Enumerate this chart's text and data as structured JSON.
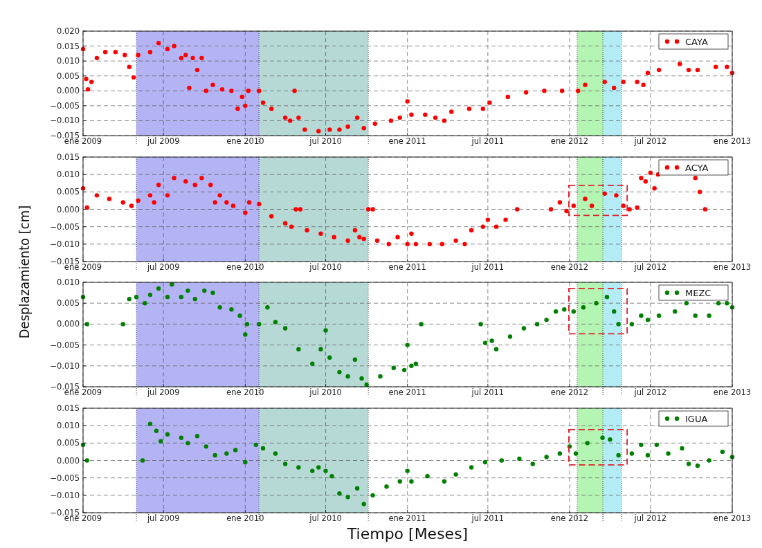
{
  "chart_data": [
    {
      "type": "scatter",
      "ylabel": "Desplazamiento [cm]",
      "marker": "circle",
      "grid": true,
      "legend": "top right",
      "xlim": [
        "2009-01-01",
        "2013-01-01"
      ],
      "xticks": [
        {
          "value": "2009-01-01",
          "label": "ene 2009"
        },
        {
          "value": "2009-07-01",
          "label": "jul 2009"
        },
        {
          "value": "2010-01-01",
          "label": "ene 2010"
        },
        {
          "value": "2010-07-01",
          "label": "jul 2010"
        },
        {
          "value": "2011-01-01",
          "label": "ene 2011"
        },
        {
          "value": "2011-07-01",
          "label": "jul 2011"
        },
        {
          "value": "2012-01-01",
          "label": "ene 2012"
        },
        {
          "value": "2012-07-01",
          "label": "jul 2012"
        },
        {
          "value": "2013-01-01",
          "label": "ene 2013"
        }
      ],
      "ylim": [
        -0.015,
        0.02
      ],
      "yticks": [
        {
          "value": -0.015,
          "label": "−0.015"
        },
        {
          "value": -0.01,
          "label": "−0.010"
        },
        {
          "value": -0.005,
          "label": "−0.005"
        },
        {
          "value": 0,
          "label": "0.000"
        },
        {
          "value": 0.005,
          "label": "0.005"
        },
        {
          "value": 0.01,
          "label": "0.010"
        },
        {
          "value": 0.015,
          "label": "0.015"
        },
        {
          "value": 0.02,
          "label": "0.020"
        }
      ],
      "bands": [
        {
          "axis": "x",
          "from": "2009-05-01",
          "to": "2010-02-01",
          "color": "#b4b4f4"
        },
        {
          "axis": "x",
          "from": "2010-02-01",
          "to": "2010-10-05",
          "color": "#b6d9d6"
        },
        {
          "axis": "x",
          "from": "2012-01-18",
          "to": "2012-03-16",
          "color": "#b4f5b4"
        },
        {
          "axis": "x",
          "from": "2012-03-16",
          "to": "2012-04-27",
          "color": "#b4ecf5"
        }
      ],
      "series": [
        {
          "name": "CAYA",
          "color": "#ff0000",
          "x": [
            "2009-01-01",
            "2009-01-08",
            "2009-01-12",
            "2009-01-20",
            "2009-02-01",
            "2009-02-20",
            "2009-03-15",
            "2009-04-05",
            "2009-04-15",
            "2009-04-25",
            "2009-05-05",
            "2009-06-01",
            "2009-06-20",
            "2009-07-10",
            "2009-07-25",
            "2009-08-10",
            "2009-08-20",
            "2009-08-28",
            "2009-09-05",
            "2009-09-15",
            "2009-09-25",
            "2009-10-05",
            "2009-10-20",
            "2009-11-10",
            "2009-12-01",
            "2009-12-15",
            "2009-12-25",
            "2010-01-01",
            "2010-01-08",
            "2010-02-01",
            "2010-02-10",
            "2010-03-01",
            "2010-04-01",
            "2010-04-12",
            "2010-04-22",
            "2010-05-01",
            "2010-05-15",
            "2010-06-15",
            "2010-07-10",
            "2010-08-01",
            "2010-08-20",
            "2010-09-10",
            "2010-09-25",
            "2010-10-20",
            "2010-11-25",
            "2010-12-15",
            "2011-01-01",
            "2011-01-10",
            "2011-02-10",
            "2011-03-05",
            "2011-03-25",
            "2011-04-10",
            "2011-05-20",
            "2011-06-20",
            "2011-07-05",
            "2011-08-15",
            "2011-09-25",
            "2011-11-05",
            "2011-12-15",
            "2012-01-20",
            "2012-02-05",
            "2012-03-20",
            "2012-04-10",
            "2012-05-01",
            "2012-06-01",
            "2012-06-15",
            "2012-06-25",
            "2012-07-20",
            "2012-09-05",
            "2012-09-25",
            "2012-10-15",
            "2012-11-25",
            "2012-12-20",
            "2013-01-01"
          ],
          "values": [
            0.014,
            0.004,
            0.0005,
            0.003,
            0.011,
            0.013,
            0.013,
            0.012,
            0.008,
            0.0045,
            0.012,
            0.013,
            0.016,
            0.014,
            0.015,
            0.011,
            0.012,
            0.001,
            0.011,
            0.007,
            0.011,
            0,
            0.002,
            0.0005,
            0,
            -0.006,
            -0.002,
            -0.005,
            0,
            0,
            -0.004,
            -0.006,
            -0.009,
            -0.01,
            0,
            -0.009,
            -0.013,
            -0.0135,
            -0.013,
            -0.013,
            -0.012,
            -0.009,
            -0.0125,
            -0.011,
            -0.01,
            -0.009,
            -0.0035,
            -0.008,
            -0.008,
            -0.009,
            -0.01,
            -0.007,
            -0.006,
            -0.006,
            -0.004,
            -0.002,
            -0.0005,
            0,
            0,
            0,
            0.002,
            0.003,
            0.001,
            0.003,
            0.003,
            0.002,
            0.006,
            0.007,
            0.009,
            0.007,
            0.007,
            0.008,
            0.008,
            0.006
          ]
        }
      ]
    },
    {
      "type": "scatter",
      "marker": "circle",
      "grid": true,
      "legend": "top right",
      "xlim": [
        "2009-01-01",
        "2013-01-01"
      ],
      "xticks": [
        {
          "value": "2009-01-01",
          "label": "ene 2009"
        },
        {
          "value": "2009-07-01",
          "label": "jul 2009"
        },
        {
          "value": "2010-01-01",
          "label": "ene 2010"
        },
        {
          "value": "2010-07-01",
          "label": "jul 2010"
        },
        {
          "value": "2011-01-01",
          "label": "ene 2011"
        },
        {
          "value": "2011-07-01",
          "label": "jul 2011"
        },
        {
          "value": "2012-01-01",
          "label": "ene 2012"
        },
        {
          "value": "2012-07-01",
          "label": "jul 2012"
        },
        {
          "value": "2013-01-01",
          "label": "ene 2013"
        }
      ],
      "ylim": [
        -0.015,
        0.015
      ],
      "yticks": [
        {
          "value": -0.015,
          "label": "−0.015"
        },
        {
          "value": -0.01,
          "label": "−0.010"
        },
        {
          "value": -0.005,
          "label": "−0.005"
        },
        {
          "value": 0,
          "label": "0.000"
        },
        {
          "value": 0.005,
          "label": "0.005"
        },
        {
          "value": 0.01,
          "label": "0.010"
        },
        {
          "value": 0.015,
          "label": "0.015"
        }
      ],
      "bands": [
        {
          "axis": "x",
          "from": "2009-05-01",
          "to": "2010-02-01",
          "color": "#b4b4f4"
        },
        {
          "axis": "x",
          "from": "2010-02-01",
          "to": "2010-10-05",
          "color": "#b6d9d6"
        },
        {
          "axis": "x",
          "from": "2012-01-18",
          "to": "2012-03-16",
          "color": "#b4f5b4"
        },
        {
          "axis": "x",
          "from": "2012-03-16",
          "to": "2012-04-27",
          "color": "#b4ecf5"
        }
      ],
      "series": [
        {
          "name": "ACYA",
          "color": "#ff0000",
          "x": [
            "2009-01-01",
            "2009-01-10",
            "2009-02-01",
            "2009-03-01",
            "2009-04-01",
            "2009-04-20",
            "2009-05-05",
            "2009-06-01",
            "2009-06-10",
            "2009-06-20",
            "2009-07-10",
            "2009-07-25",
            "2009-08-20",
            "2009-09-10",
            "2009-09-25",
            "2009-10-15",
            "2009-10-25",
            "2009-11-05",
            "2009-11-20",
            "2009-12-05",
            "2010-01-01",
            "2010-01-10",
            "2010-02-01",
            "2010-03-01",
            "2010-04-01",
            "2010-04-15",
            "2010-04-25",
            "2010-05-05",
            "2010-05-20",
            "2010-06-20",
            "2010-07-20",
            "2010-08-20",
            "2010-09-05",
            "2010-09-15",
            "2010-09-25",
            "2010-10-05",
            "2010-10-15",
            "2010-10-25",
            "2010-11-20",
            "2010-12-10",
            "2011-01-01",
            "2011-01-10",
            "2011-01-20",
            "2011-02-20",
            "2011-03-20",
            "2011-04-20",
            "2011-05-10",
            "2011-05-25",
            "2011-06-20",
            "2011-07-01",
            "2011-07-20",
            "2011-08-10",
            "2011-09-05",
            "2011-11-20",
            "2011-12-10",
            "2011-12-25",
            "2012-01-10",
            "2012-02-05",
            "2012-02-20",
            "2012-03-20",
            "2012-04-15",
            "2012-05-01",
            "2012-05-15",
            "2012-06-01",
            "2012-06-10",
            "2012-06-20",
            "2012-07-01",
            "2012-07-10",
            "2012-07-18",
            "2012-10-10",
            "2012-10-20",
            "2012-11-01"
          ],
          "values": [
            0.006,
            0.0005,
            0.004,
            0.003,
            0.002,
            0.001,
            0.0025,
            0.004,
            0.002,
            0.007,
            0.004,
            0.009,
            0.008,
            0.007,
            0.009,
            0.007,
            0.002,
            0.004,
            0.002,
            0.001,
            -0.001,
            0.002,
            0.0015,
            -0.002,
            -0.004,
            -0.005,
            0,
            0,
            -0.006,
            -0.007,
            -0.008,
            -0.009,
            -0.006,
            -0.008,
            -0.0085,
            0,
            0,
            -0.009,
            -0.01,
            -0.008,
            -0.01,
            -0.007,
            -0.01,
            -0.01,
            -0.01,
            -0.009,
            -0.01,
            -0.006,
            -0.005,
            -0.003,
            -0.005,
            -0.003,
            0,
            0,
            0.002,
            -0.0005,
            0.001,
            0.003,
            0.001,
            0.0045,
            0.004,
            0.001,
            0,
            0.0005,
            0.009,
            0.008,
            0.0105,
            0.006,
            0.01,
            0.009,
            0.005,
            0
          ]
        }
      ]
    },
    {
      "type": "scatter",
      "marker": "circle",
      "grid": true,
      "legend": "top right",
      "xlim": [
        "2009-01-01",
        "2013-01-01"
      ],
      "xticks": [
        {
          "value": "2009-01-01",
          "label": "ene 2009"
        },
        {
          "value": "2009-07-01",
          "label": "jul 2009"
        },
        {
          "value": "2010-01-01",
          "label": "ene 2010"
        },
        {
          "value": "2010-07-01",
          "label": "jul 2010"
        },
        {
          "value": "2011-01-01",
          "label": "ene 2011"
        },
        {
          "value": "2011-07-01",
          "label": "jul 2011"
        },
        {
          "value": "2012-01-01",
          "label": "ene 2012"
        },
        {
          "value": "2012-07-01",
          "label": "jul 2012"
        },
        {
          "value": "2013-01-01",
          "label": "ene 2013"
        }
      ],
      "ylim": [
        -0.015,
        0.01
      ],
      "yticks": [
        {
          "value": -0.015,
          "label": "−0.015"
        },
        {
          "value": -0.01,
          "label": "−0.010"
        },
        {
          "value": -0.005,
          "label": "−0.005"
        },
        {
          "value": 0,
          "label": "0.000"
        },
        {
          "value": 0.005,
          "label": "0.005"
        },
        {
          "value": 0.01,
          "label": "0.010"
        }
      ],
      "bands": [
        {
          "axis": "x",
          "from": "2009-05-01",
          "to": "2010-02-01",
          "color": "#b4b4f4"
        },
        {
          "axis": "x",
          "from": "2010-02-01",
          "to": "2010-10-05",
          "color": "#b6d9d6"
        },
        {
          "axis": "x",
          "from": "2012-01-18",
          "to": "2012-03-16",
          "color": "#b4f5b4"
        },
        {
          "axis": "x",
          "from": "2012-03-16",
          "to": "2012-04-27",
          "color": "#b4ecf5"
        }
      ],
      "series": [
        {
          "name": "MEZC",
          "color": "#008000",
          "x": [
            "2009-01-01",
            "2009-01-10",
            "2009-04-01",
            "2009-04-15",
            "2009-05-01",
            "2009-05-20",
            "2009-06-01",
            "2009-06-20",
            "2009-07-10",
            "2009-07-20",
            "2009-08-10",
            "2009-08-25",
            "2009-09-10",
            "2009-10-01",
            "2009-10-20",
            "2009-11-05",
            "2009-12-01",
            "2009-12-20",
            "2010-01-01",
            "2010-01-05",
            "2010-02-01",
            "2010-02-20",
            "2010-03-10",
            "2010-04-01",
            "2010-05-01",
            "2010-06-01",
            "2010-06-20",
            "2010-07-01",
            "2010-07-10",
            "2010-08-01",
            "2010-08-20",
            "2010-09-05",
            "2010-09-20",
            "2010-10-01",
            "2010-11-01",
            "2010-12-01",
            "2010-12-25",
            "2011-01-01",
            "2011-01-10",
            "2011-01-20",
            "2011-02-01",
            "2011-06-15",
            "2011-06-25",
            "2011-07-10",
            "2011-07-20",
            "2011-08-20",
            "2011-09-20",
            "2011-10-20",
            "2011-11-10",
            "2011-12-01",
            "2011-12-20",
            "2012-01-10",
            "2012-02-01",
            "2012-03-01",
            "2012-03-25",
            "2012-04-10",
            "2012-04-20",
            "2012-05-20",
            "2012-06-10",
            "2012-06-25",
            "2012-07-20",
            "2012-08-25",
            "2012-09-20",
            "2012-10-10",
            "2012-11-10",
            "2012-12-01",
            "2012-12-20",
            "2013-01-01"
          ],
          "values": [
            0.0065,
            0,
            0,
            0.006,
            0.0065,
            0.005,
            0.007,
            0.0085,
            0.0065,
            0.0095,
            0.0065,
            0.008,
            0.006,
            0.008,
            0.0075,
            0.004,
            0.0035,
            0.002,
            -0.0025,
            0,
            0,
            0.004,
            0.0005,
            -0.001,
            -0.006,
            -0.0095,
            -0.006,
            -0.0015,
            -0.008,
            -0.0115,
            -0.0125,
            -0.0085,
            -0.013,
            -0.0145,
            -0.0125,
            -0.0105,
            -0.011,
            -0.005,
            -0.01,
            -0.0095,
            0,
            0,
            -0.0045,
            -0.004,
            -0.006,
            -0.003,
            -0.001,
            0,
            0.001,
            0.003,
            0.0035,
            0.003,
            0.004,
            0.005,
            0.0065,
            0.003,
            0,
            0,
            0.002,
            0.001,
            0.002,
            0.003,
            0.005,
            0.002,
            0.002,
            0.005,
            0.005,
            0.004
          ]
        }
      ]
    },
    {
      "type": "scatter",
      "xlabel": "Tiempo [Meses]",
      "marker": "circle",
      "grid": true,
      "legend": "top right",
      "xlim": [
        "2009-01-01",
        "2013-01-01"
      ],
      "xticks": [
        {
          "value": "2009-01-01",
          "label": "ene 2009"
        },
        {
          "value": "2009-07-01",
          "label": "jul 2009"
        },
        {
          "value": "2010-01-01",
          "label": "ene 2010"
        },
        {
          "value": "2010-07-01",
          "label": "jul 2010"
        },
        {
          "value": "2011-01-01",
          "label": "ene 2011"
        },
        {
          "value": "2011-07-01",
          "label": "jul 2011"
        },
        {
          "value": "2012-01-01",
          "label": "ene 2012"
        },
        {
          "value": "2012-07-01",
          "label": "jul 2012"
        },
        {
          "value": "2013-01-01",
          "label": "ene 2013"
        }
      ],
      "ylim": [
        -0.015,
        0.015
      ],
      "yticks": [
        {
          "value": -0.015,
          "label": "−0.015"
        },
        {
          "value": -0.01,
          "label": "−0.010"
        },
        {
          "value": -0.005,
          "label": "−0.005"
        },
        {
          "value": 0,
          "label": "0.000"
        },
        {
          "value": 0.005,
          "label": "0.005"
        },
        {
          "value": 0.01,
          "label": "0.010"
        },
        {
          "value": 0.015,
          "label": "0.015"
        }
      ],
      "bands": [
        {
          "axis": "x",
          "from": "2009-05-01",
          "to": "2010-02-01",
          "color": "#b4b4f4"
        },
        {
          "axis": "x",
          "from": "2010-02-01",
          "to": "2010-10-05",
          "color": "#b6d9d6"
        },
        {
          "axis": "x",
          "from": "2012-01-18",
          "to": "2012-03-16",
          "color": "#b4f5b4"
        },
        {
          "axis": "x",
          "from": "2012-03-16",
          "to": "2012-04-27",
          "color": "#b4ecf5"
        }
      ],
      "series": [
        {
          "name": "IGUA",
          "color": "#008000",
          "x": [
            "2009-01-01",
            "2009-01-10",
            "2009-05-15",
            "2009-06-01",
            "2009-06-15",
            "2009-06-25",
            "2009-07-10",
            "2009-08-10",
            "2009-08-25",
            "2009-09-15",
            "2009-10-05",
            "2009-10-25",
            "2009-11-20",
            "2009-12-10",
            "2010-01-01",
            "2010-01-25",
            "2010-02-10",
            "2010-03-10",
            "2010-04-01",
            "2010-05-01",
            "2010-06-01",
            "2010-06-15",
            "2010-07-01",
            "2010-07-15",
            "2010-08-01",
            "2010-08-20",
            "2010-09-10",
            "2010-09-25",
            "2010-10-15",
            "2010-11-15",
            "2010-12-15",
            "2011-01-01",
            "2011-01-10",
            "2011-02-15",
            "2011-03-25",
            "2011-04-20",
            "2011-05-25",
            "2011-06-25",
            "2011-08-01",
            "2011-09-10",
            "2011-10-10",
            "2011-11-10",
            "2011-12-10",
            "2012-01-01",
            "2012-01-15",
            "2012-02-10",
            "2012-03-15",
            "2012-04-01",
            "2012-04-20",
            "2012-05-20",
            "2012-06-10",
            "2012-06-25",
            "2012-07-15",
            "2012-08-10",
            "2012-09-10",
            "2012-09-25",
            "2012-10-15",
            "2012-11-10",
            "2012-12-10",
            "2013-01-01"
          ],
          "values": [
            0.0045,
            0,
            0,
            0.0105,
            0.0085,
            0.0055,
            0.0075,
            0.0065,
            0.005,
            0.007,
            0.004,
            0.0015,
            0.002,
            0.003,
            -0.0005,
            0.0045,
            0.0035,
            0.002,
            -0.001,
            -0.002,
            -0.003,
            -0.002,
            -0.003,
            -0.0045,
            -0.0095,
            -0.0105,
            -0.008,
            -0.0125,
            -0.01,
            -0.0075,
            -0.006,
            -0.003,
            -0.006,
            -0.0045,
            -0.006,
            -0.004,
            -0.002,
            -0.0005,
            0,
            0.0005,
            -0.001,
            0.001,
            0.002,
            0.004,
            0.002,
            0.005,
            0.0065,
            0.006,
            0.0015,
            0.002,
            0.0045,
            0.0015,
            0.0045,
            0.002,
            0.0035,
            -0.001,
            -0.0015,
            0,
            0.0025,
            0.001
          ]
        }
      ]
    }
  ]
}
